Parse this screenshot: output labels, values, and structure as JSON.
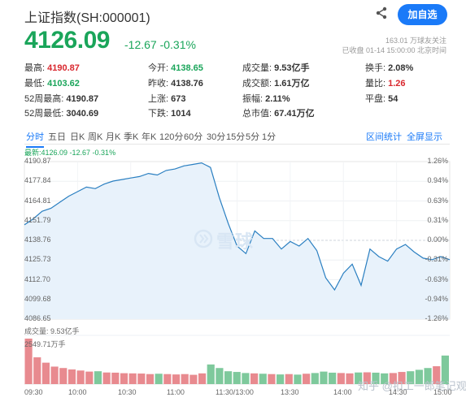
{
  "header": {
    "title": "上证指数(SH:000001)",
    "follow_label": "加自选",
    "price": "4126.09",
    "change": "-12.67 -0.31%",
    "followers": "163.01 万球友关注",
    "status": "已收盘 01-14 15:00:00 北京时间"
  },
  "quote": [
    {
      "label": "最高:",
      "value": "4190.87",
      "color": "red"
    },
    {
      "label": "今开:",
      "value": "4138.65",
      "color": "grn"
    },
    {
      "label": "成交量:",
      "value": "9.53亿手",
      "color": ""
    },
    {
      "label": "换手:",
      "value": "2.08%",
      "color": ""
    },
    {
      "label": "最低:",
      "value": "4103.62",
      "color": "grn"
    },
    {
      "label": "昨收:",
      "value": "4138.76",
      "color": ""
    },
    {
      "label": "成交额:",
      "value": "1.61万亿",
      "color": ""
    },
    {
      "label": "量比:",
      "value": "1.26",
      "color": "red"
    },
    {
      "label": "52周最高:",
      "value": "4190.87",
      "color": ""
    },
    {
      "label": "上涨:",
      "value": "673",
      "color": ""
    },
    {
      "label": "振幅:",
      "value": "2.11%",
      "color": ""
    },
    {
      "label": "平盘:",
      "value": "54",
      "color": ""
    },
    {
      "label": "52周最低:",
      "value": "3040.69",
      "color": ""
    },
    {
      "label": "下跌:",
      "value": "1014",
      "color": ""
    },
    {
      "label": "总市值:",
      "value": "67.41万亿",
      "color": ""
    },
    {
      "label": "",
      "value": "",
      "color": ""
    }
  ],
  "tabs": [
    "分时",
    "五日",
    "日K",
    "周K",
    "月K",
    "季K",
    "年K",
    "120分",
    "60分",
    "30分",
    "15分",
    "5分",
    "1分"
  ],
  "tabs_right": [
    "区间统计",
    "全屏显示"
  ],
  "chart_latest": "最新:4126.09 -12.67 -0.31%",
  "volume_label": "成交量: 9.53亿手",
  "volume_max": "2549.71万手",
  "watermark": "雪球",
  "footer_watermark": "知乎 @扣工一郎笔记观",
  "colors": {
    "up": "#d9272e",
    "down": "#1aa55a",
    "line": "#2a7fc1",
    "fill": "#e8f2fb",
    "accent": "#1a7af8"
  },
  "chart_data": {
    "type": "area",
    "left_ticks": [
      "4190.87",
      "4177.84",
      "4164.81",
      "4151.79",
      "4138.76",
      "4125.73",
      "4112.70",
      "4099.68",
      "4086.65"
    ],
    "right_ticks": [
      "1.26%",
      "0.94%",
      "0.63%",
      "0.31%",
      "0.00%",
      "-0.31%",
      "-0.63%",
      "-0.94%",
      "-1.26%"
    ],
    "x_ticks": [
      "09:30",
      "10:00",
      "10:30",
      "11:00",
      "11:30/13:00",
      "13:30",
      "14:00",
      "14:30",
      "15:00"
    ],
    "ylim": [
      4086.65,
      4190.87
    ],
    "x": [
      0,
      5,
      10,
      15,
      20,
      25,
      30,
      35,
      40,
      45,
      50,
      55,
      60,
      65,
      70,
      75,
      80,
      85,
      90,
      95,
      100,
      105,
      110,
      115,
      120,
      125,
      130,
      135,
      140,
      145,
      150,
      155,
      160,
      165,
      170,
      175,
      180,
      185,
      190,
      195,
      200,
      205,
      210,
      215,
      220,
      225,
      230,
      235,
      240
    ],
    "y": [
      4149,
      4153,
      4158,
      4160,
      4164,
      4168,
      4171,
      4174,
      4173,
      4176,
      4178,
      4179,
      4180,
      4181,
      4183,
      4182,
      4185,
      4186,
      4188,
      4189,
      4190,
      4187,
      4167,
      4150,
      4135,
      4130,
      4145,
      4140,
      4140,
      4133,
      4138,
      4135,
      4140,
      4132,
      4114,
      4106,
      4117,
      4123,
      4109,
      4133,
      4128,
      4125,
      4133,
      4136,
      4131,
      4127,
      4126,
      4128,
      4126
    ],
    "volume": [
      2549,
      1500,
      1200,
      980,
      900,
      820,
      760,
      700,
      720,
      650,
      640,
      610,
      600,
      590,
      560,
      580,
      560,
      540,
      560,
      520,
      600,
      1100,
      900,
      720,
      680,
      620,
      600,
      580,
      560,
      540,
      560,
      530,
      580,
      620,
      700,
      640,
      620,
      600,
      650,
      660,
      640,
      600,
      620,
      680,
      720,
      800,
      900,
      1000,
      1600
    ]
  }
}
